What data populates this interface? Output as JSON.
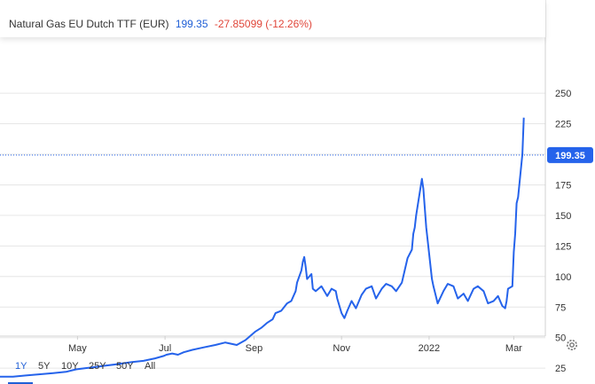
{
  "legend": {
    "name": "Natural Gas EU Dutch TTF (EUR)",
    "price": "199.35",
    "change": "-27.85099 (-12.26%)"
  },
  "price_tag": "199.35",
  "colors": {
    "line": "#2563eb",
    "price_text": "#1f5fd6",
    "change_text": "#e0463a",
    "tag_bg": "#2563eb",
    "grid": "#e6e6e6"
  },
  "range_buttons": [
    "1Y",
    "5Y",
    "10Y",
    "25Y",
    "50Y",
    "All"
  ],
  "active_range": "1Y",
  "settings_icon": "gear-icon",
  "chart_data": {
    "type": "line",
    "title": "Natural Gas EU Dutch TTF (EUR)",
    "xlabel": "",
    "ylabel": "",
    "ylim": [
      0,
      260
    ],
    "yticks": [
      25,
      50,
      75,
      100,
      125,
      150,
      175,
      200,
      225,
      250
    ],
    "xticks": [
      "May",
      "Jul",
      "Sep",
      "Nov",
      "2022",
      "Mar"
    ],
    "xlim": [
      "2021-03-08",
      "2022-03-23"
    ],
    "grid": true,
    "current_value": 199.35,
    "series": [
      {
        "name": "Natural Gas EU Dutch TTF (EUR)",
        "x": [
          "2021-03-08",
          "2021-03-17",
          "2021-03-26",
          "2021-04-05",
          "2021-04-14",
          "2021-04-23",
          "2021-04-30",
          "2021-05-06",
          "2021-05-14",
          "2021-05-20",
          "2021-05-27",
          "2021-06-02",
          "2021-06-08",
          "2021-06-16",
          "2021-06-24",
          "2021-06-30",
          "2021-07-02",
          "2021-07-06",
          "2021-07-10",
          "2021-07-14",
          "2021-07-20",
          "2021-07-28",
          "2021-08-05",
          "2021-08-12",
          "2021-08-16",
          "2021-08-20",
          "2021-08-26",
          "2021-09-02",
          "2021-09-06",
          "2021-09-10",
          "2021-09-14",
          "2021-09-16",
          "2021-09-20",
          "2021-09-24",
          "2021-09-27",
          "2021-09-30",
          "2021-10-01",
          "2021-10-04",
          "2021-10-05",
          "2021-10-06",
          "2021-10-07",
          "2021-10-08",
          "2021-10-11",
          "2021-10-12",
          "2021-10-14",
          "2021-10-18",
          "2021-10-22",
          "2021-10-25",
          "2021-10-28",
          "2021-10-29",
          "2021-11-01",
          "2021-11-03",
          "2021-11-05",
          "2021-11-08",
          "2021-11-11",
          "2021-11-15",
          "2021-11-18",
          "2021-11-22",
          "2021-11-25",
          "2021-11-29",
          "2021-12-02",
          "2021-12-06",
          "2021-12-09",
          "2021-12-13",
          "2021-12-15",
          "2021-12-17",
          "2021-12-20",
          "2021-12-21",
          "2021-12-22",
          "2021-12-23",
          "2021-12-27",
          "2021-12-28",
          "2021-12-30",
          "2022-01-03",
          "2022-01-04",
          "2022-01-07",
          "2022-01-11",
          "2022-01-14",
          "2022-01-18",
          "2022-01-21",
          "2022-01-25",
          "2022-01-28",
          "2022-02-01",
          "2022-02-04",
          "2022-02-08",
          "2022-02-11",
          "2022-02-15",
          "2022-02-18",
          "2022-02-21",
          "2022-02-23",
          "2022-02-24",
          "2022-02-25",
          "2022-02-28",
          "2022-03-01",
          "2022-03-02",
          "2022-03-03",
          "2022-03-04",
          "2022-03-07",
          "2022-03-08"
        ],
        "values": [
          18,
          18,
          19,
          20,
          21,
          22,
          24,
          25,
          26,
          27,
          28,
          29,
          30,
          31,
          33,
          35,
          36,
          37,
          36,
          38,
          40,
          42,
          44,
          46,
          45,
          44,
          48,
          55,
          58,
          62,
          65,
          70,
          72,
          78,
          80,
          88,
          95,
          105,
          112,
          116,
          108,
          98,
          102,
          90,
          88,
          92,
          84,
          90,
          88,
          82,
          70,
          66,
          72,
          80,
          74,
          85,
          90,
          92,
          82,
          90,
          94,
          92,
          88,
          95,
          105,
          115,
          122,
          135,
          140,
          150,
          180,
          172,
          140,
          98,
          92,
          78,
          88,
          94,
          92,
          82,
          86,
          80,
          90,
          92,
          88,
          78,
          80,
          84,
          76,
          74,
          80,
          90,
          92,
          120,
          135,
          160,
          165,
          200,
          230
        ]
      }
    ]
  }
}
